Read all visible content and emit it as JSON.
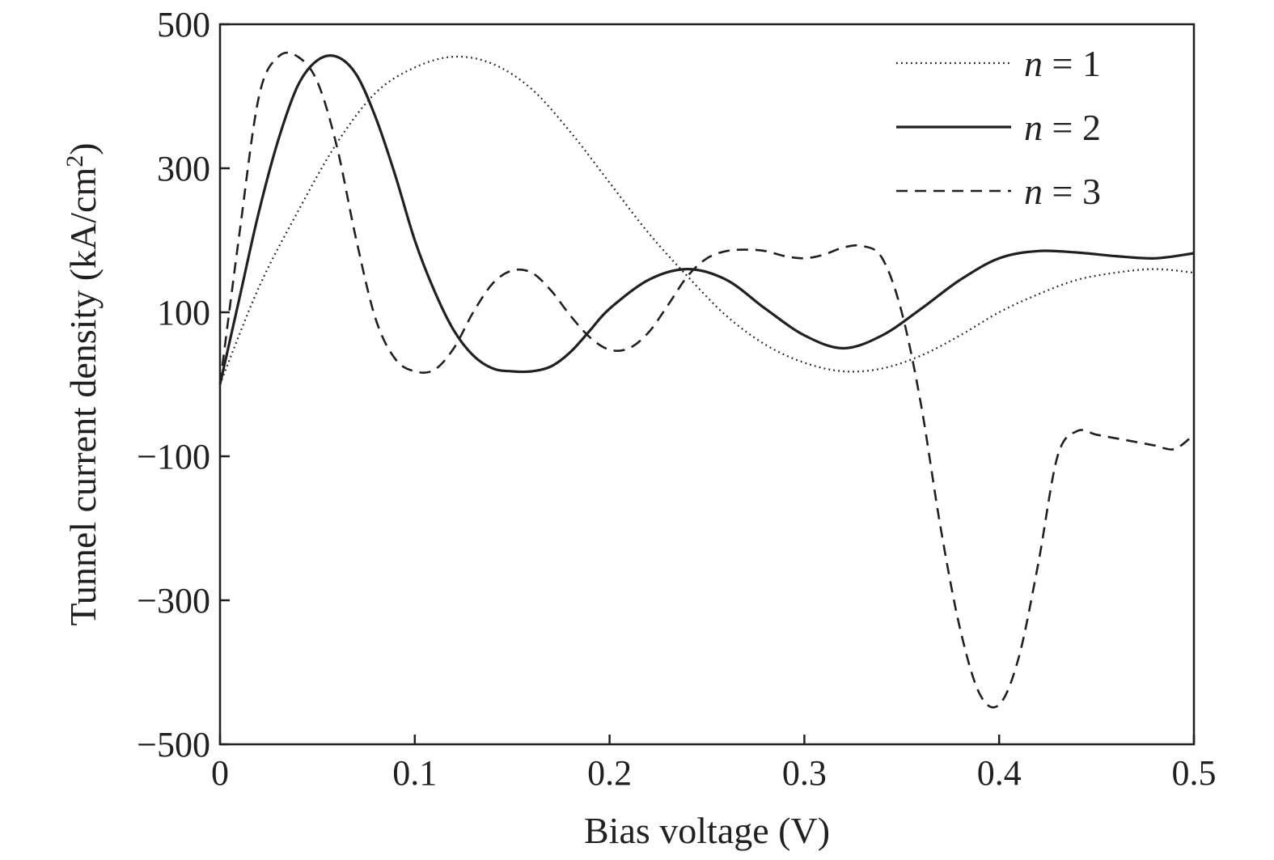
{
  "chart_data": {
    "type": "line",
    "title": "",
    "xlabel": "Bias voltage (V)",
    "ylabel": "Tunnel current density (kA/cm",
    "ylabel_sup": "2",
    "ylabel_close": ")",
    "xlim": [
      0,
      0.5
    ],
    "ylim": [
      -500,
      500
    ],
    "xticks": [
      0,
      0.1,
      0.2,
      0.3,
      0.4,
      0.5
    ],
    "xtick_labels": [
      "0",
      "0.1",
      "0.2",
      "0.3",
      "0.4",
      "0.5"
    ],
    "yticks": [
      -500,
      -300,
      -100,
      100,
      300,
      500
    ],
    "ytick_labels": [
      "−500",
      "−300",
      "−100",
      "100",
      "300",
      "500"
    ],
    "grid": false,
    "legend_position": "top-right",
    "series": [
      {
        "name": "n = 1",
        "legend_var": "n",
        "legend_rest": " = 1",
        "style": "dotted",
        "x": [
          0,
          0.02,
          0.04,
          0.06,
          0.08,
          0.1,
          0.12,
          0.14,
          0.16,
          0.18,
          0.2,
          0.22,
          0.24,
          0.26,
          0.28,
          0.3,
          0.32,
          0.34,
          0.36,
          0.38,
          0.4,
          0.42,
          0.44,
          0.46,
          0.48,
          0.5
        ],
        "y": [
          0,
          135,
          240,
          335,
          405,
          440,
          455,
          445,
          410,
          350,
          280,
          210,
          150,
          95,
          55,
          30,
          18,
          22,
          40,
          68,
          100,
          125,
          145,
          155,
          160,
          155
        ]
      },
      {
        "name": "n = 2",
        "legend_var": "n",
        "legend_rest": " = 2",
        "style": "solid",
        "x": [
          0,
          0.01,
          0.02,
          0.03,
          0.04,
          0.05,
          0.06,
          0.07,
          0.08,
          0.09,
          0.1,
          0.11,
          0.12,
          0.13,
          0.14,
          0.15,
          0.16,
          0.17,
          0.18,
          0.19,
          0.2,
          0.22,
          0.24,
          0.26,
          0.28,
          0.3,
          0.32,
          0.34,
          0.36,
          0.38,
          0.4,
          0.42,
          0.44,
          0.46,
          0.48,
          0.5
        ],
        "y": [
          0,
          120,
          240,
          340,
          415,
          450,
          455,
          430,
          370,
          290,
          200,
          130,
          75,
          40,
          22,
          18,
          18,
          25,
          45,
          75,
          105,
          145,
          160,
          145,
          105,
          68,
          50,
          68,
          105,
          145,
          175,
          185,
          183,
          178,
          175,
          182
        ]
      },
      {
        "name": "n = 3",
        "legend_var": "n",
        "legend_rest": " = 3",
        "style": "dashed",
        "x": [
          0,
          0.01,
          0.02,
          0.03,
          0.04,
          0.05,
          0.06,
          0.07,
          0.08,
          0.09,
          0.1,
          0.11,
          0.12,
          0.13,
          0.14,
          0.15,
          0.16,
          0.17,
          0.18,
          0.19,
          0.2,
          0.21,
          0.22,
          0.23,
          0.24,
          0.25,
          0.26,
          0.27,
          0.28,
          0.29,
          0.3,
          0.31,
          0.32,
          0.33,
          0.34,
          0.35,
          0.36,
          0.37,
          0.38,
          0.39,
          0.4,
          0.41,
          0.42,
          0.43,
          0.44,
          0.45,
          0.46,
          0.47,
          0.48,
          0.49,
          0.5
        ],
        "y": [
          0,
          210,
          400,
          455,
          455,
          420,
          330,
          200,
          90,
          35,
          18,
          20,
          50,
          100,
          140,
          158,
          155,
          130,
          95,
          65,
          48,
          50,
          72,
          110,
          150,
          175,
          185,
          187,
          185,
          178,
          175,
          180,
          190,
          192,
          175,
          100,
          -30,
          -200,
          -340,
          -430,
          -445,
          -380,
          -250,
          -100,
          -65,
          -70,
          -75,
          -80,
          -85,
          -90,
          -70
        ]
      }
    ]
  }
}
